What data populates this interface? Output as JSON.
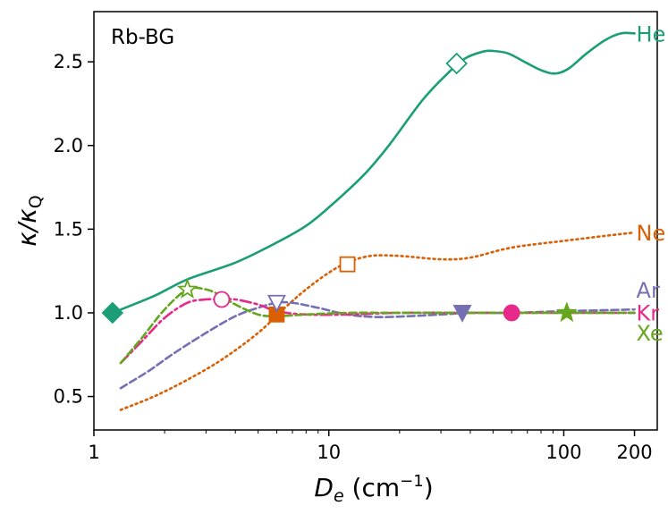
{
  "panel_label": "Rb-BG",
  "axis_labels": {
    "x_main": "D",
    "x_sub": "e",
    "x_unit_prefix": " (cm",
    "x_unit_exp": "−1",
    "x_unit_suffix": ")",
    "y_num": "κ/κ",
    "y_sub": "Q"
  },
  "chart_data": {
    "type": "line",
    "xscale": "log",
    "xlim": [
      1.0,
      250
    ],
    "ylim": [
      0.3,
      2.8
    ],
    "x_ticks": [
      {
        "value": 1,
        "label": "1"
      },
      {
        "value": 10,
        "label": "10"
      },
      {
        "value": 100,
        "label": "100"
      },
      {
        "value": 200,
        "label": "200"
      }
    ],
    "y_ticks": [
      {
        "value": 0.5,
        "label": "0.5"
      },
      {
        "value": 1.0,
        "label": "1.0"
      },
      {
        "value": 1.5,
        "label": "1.5"
      },
      {
        "value": 2.0,
        "label": "2.0"
      },
      {
        "value": 2.5,
        "label": "2.5"
      }
    ],
    "series": [
      {
        "name": "He",
        "color": "#1b9e77",
        "dash": "solid",
        "points": [
          [
            1.2,
            1.0
          ],
          [
            1.8,
            1.1
          ],
          [
            2.5,
            1.2
          ],
          [
            4.0,
            1.3
          ],
          [
            6.0,
            1.42
          ],
          [
            8.0,
            1.52
          ],
          [
            10.0,
            1.63
          ],
          [
            14.0,
            1.82
          ],
          [
            18.0,
            2.0
          ],
          [
            25.0,
            2.27
          ],
          [
            32.0,
            2.43
          ],
          [
            38.0,
            2.52
          ],
          [
            45.0,
            2.56
          ],
          [
            50.0,
            2.565
          ],
          [
            58.0,
            2.55
          ],
          [
            68.0,
            2.5
          ],
          [
            80.0,
            2.45
          ],
          [
            92.0,
            2.43
          ],
          [
            105.0,
            2.46
          ],
          [
            125.0,
            2.55
          ],
          [
            150.0,
            2.63
          ],
          [
            175.0,
            2.67
          ],
          [
            200.0,
            2.67
          ]
        ],
        "markers": [
          {
            "x": 1.2,
            "y": 1.0,
            "shape": "diamond",
            "filled": true
          },
          {
            "x": 35.0,
            "y": 2.49,
            "shape": "diamond",
            "filled": false
          }
        ]
      },
      {
        "name": "Ne",
        "color": "#d95f02",
        "dash": "dotted",
        "points": [
          [
            1.3,
            0.42
          ],
          [
            1.8,
            0.5
          ],
          [
            2.5,
            0.6
          ],
          [
            3.5,
            0.72
          ],
          [
            5.0,
            0.88
          ],
          [
            6.5,
            1.03
          ],
          [
            8.0,
            1.14
          ],
          [
            10.0,
            1.24
          ],
          [
            12.0,
            1.3
          ],
          [
            15.0,
            1.34
          ],
          [
            20.0,
            1.34
          ],
          [
            30.0,
            1.32
          ],
          [
            40.0,
            1.33
          ],
          [
            60.0,
            1.39
          ],
          [
            100.0,
            1.43
          ],
          [
            150.0,
            1.46
          ],
          [
            200.0,
            1.48
          ]
        ],
        "markers": [
          {
            "x": 6.0,
            "y": 0.99,
            "shape": "square",
            "filled": true
          },
          {
            "x": 12.0,
            "y": 1.29,
            "shape": "square",
            "filled": false
          }
        ]
      },
      {
        "name": "Ar",
        "color": "#7570b3",
        "dash": "dashed",
        "points": [
          [
            1.3,
            0.55
          ],
          [
            1.7,
            0.65
          ],
          [
            2.2,
            0.76
          ],
          [
            3.0,
            0.88
          ],
          [
            4.0,
            0.98
          ],
          [
            5.0,
            1.03
          ],
          [
            6.0,
            1.06
          ],
          [
            7.0,
            1.06
          ],
          [
            9.0,
            1.03
          ],
          [
            12.0,
            0.99
          ],
          [
            16.0,
            0.975
          ],
          [
            22.0,
            0.98
          ],
          [
            30.0,
            0.99
          ],
          [
            40.0,
            1.0
          ],
          [
            60.0,
            1.0
          ],
          [
            100.0,
            1.01
          ],
          [
            200.0,
            1.02
          ]
        ],
        "markers": [
          {
            "x": 6.0,
            "y": 1.06,
            "shape": "triangle-down",
            "filled": false
          },
          {
            "x": 37.0,
            "y": 1.0,
            "shape": "triangle-down",
            "filled": true
          }
        ]
      },
      {
        "name": "Kr",
        "color": "#e7298a",
        "dash": "dashdot",
        "points": [
          [
            1.3,
            0.7
          ],
          [
            1.6,
            0.83
          ],
          [
            2.0,
            0.97
          ],
          [
            2.5,
            1.06
          ],
          [
            3.0,
            1.08
          ],
          [
            3.5,
            1.08
          ],
          [
            4.0,
            1.08
          ],
          [
            5.0,
            1.05
          ],
          [
            6.0,
            1.01
          ],
          [
            8.0,
            0.99
          ],
          [
            12.0,
            0.99
          ],
          [
            20.0,
            1.0
          ],
          [
            40.0,
            1.0
          ],
          [
            60.0,
            1.0
          ],
          [
            100.0,
            1.0
          ],
          [
            200.0,
            1.0
          ]
        ],
        "markers": [
          {
            "x": 3.5,
            "y": 1.08,
            "shape": "circle",
            "filled": false
          },
          {
            "x": 60.0,
            "y": 1.0,
            "shape": "circle",
            "filled": true
          }
        ]
      },
      {
        "name": "Xe",
        "color": "#66a61e",
        "dash": "dashed",
        "points": [
          [
            1.3,
            0.7
          ],
          [
            1.6,
            0.85
          ],
          [
            2.0,
            1.02
          ],
          [
            2.5,
            1.14
          ],
          [
            3.0,
            1.14
          ],
          [
            3.5,
            1.1
          ],
          [
            4.0,
            1.05
          ],
          [
            5.0,
            0.99
          ],
          [
            6.0,
            0.98
          ],
          [
            8.0,
            0.99
          ],
          [
            12.0,
            1.0
          ],
          [
            20.0,
            1.0
          ],
          [
            40.0,
            1.0
          ],
          [
            60.0,
            1.0
          ],
          [
            100.0,
            1.0
          ],
          [
            200.0,
            1.0
          ]
        ],
        "markers": [
          {
            "x": 2.5,
            "y": 1.14,
            "shape": "star",
            "filled": false
          },
          {
            "x": 103.0,
            "y": 1.0,
            "shape": "star",
            "filled": true
          }
        ]
      }
    ]
  }
}
